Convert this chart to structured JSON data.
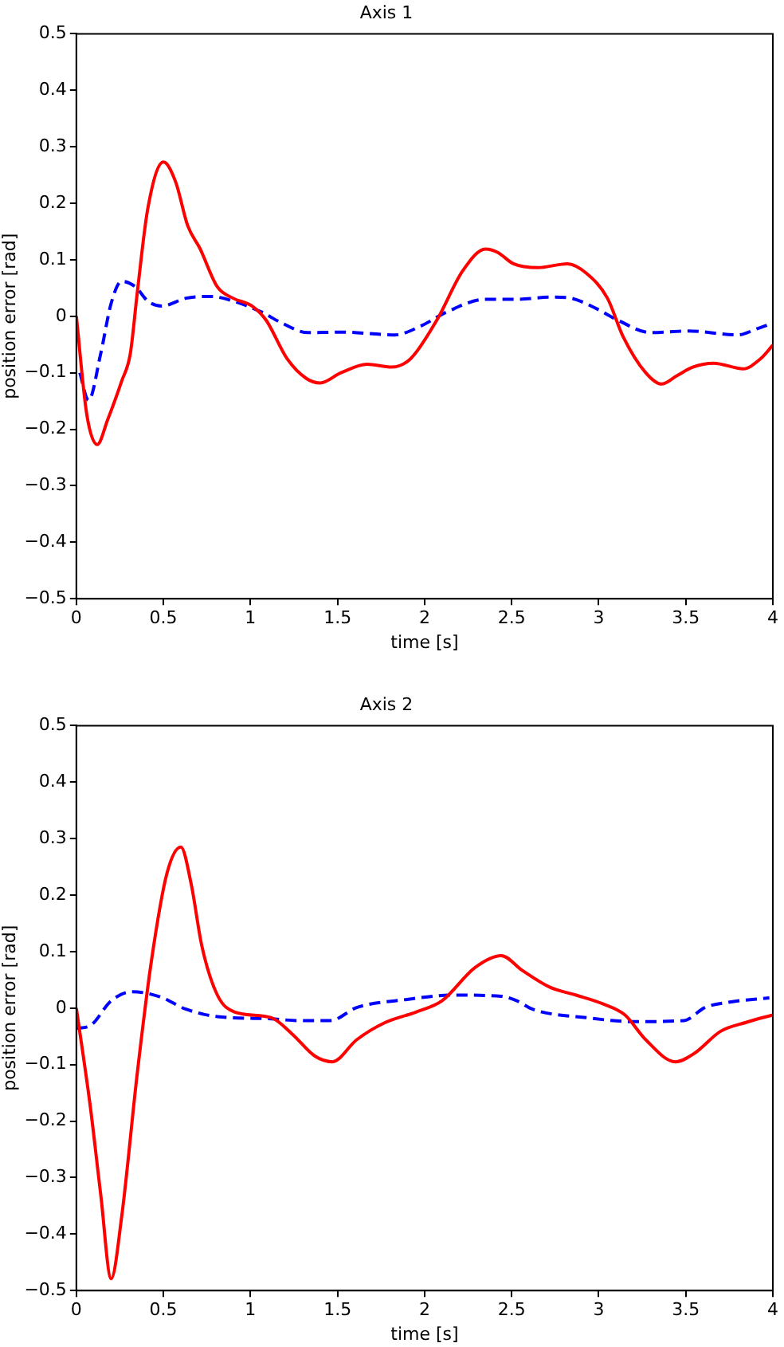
{
  "chart_data": [
    {
      "type": "line",
      "title": "Axis 1",
      "xlabel": "time [s]",
      "ylabel": "position error [rad]",
      "xlim": [
        0,
        4
      ],
      "xticks": [
        0,
        0.5,
        1,
        1.5,
        2,
        2.5,
        3,
        3.5,
        4
      ],
      "ylim": [
        -0.5,
        0.5
      ],
      "yticks": [
        {
          "value": -0.5,
          "label": "−0.5"
        },
        {
          "value": -0.4,
          "label": "−0.4"
        },
        {
          "value": -0.3,
          "label": "−0.3"
        },
        {
          "value": -0.2,
          "label": "−0.2"
        },
        {
          "value": -0.1,
          "label": "−0.1"
        },
        0,
        0.1,
        0.2,
        0.3,
        0.4,
        0.5
      ],
      "grid": false,
      "marker": "none",
      "series": [
        {
          "color": "#ff0000",
          "line_style": "solid",
          "x": [
            0,
            0.06,
            0.12,
            0.18,
            0.26,
            0.31,
            0.35,
            0.41,
            0.5,
            0.57,
            0.64,
            0.71,
            0.81,
            0.9,
            1.01,
            1.09,
            1.21,
            1.32,
            1.4,
            1.52,
            1.67,
            1.81,
            1.92,
            2.07,
            2.22,
            2.35,
            2.42,
            2.51,
            2.65,
            2.82,
            2.93,
            3.05,
            3.14,
            3.27,
            3.36,
            3.45,
            3.54,
            3.66,
            3.83,
            3.93,
            4
          ],
          "values": [
            0,
            -0.174,
            -0.227,
            -0.183,
            -0.115,
            -0.066,
            0.042,
            0.19,
            0.273,
            0.238,
            0.16,
            0.12,
            0.052,
            0.032,
            0.018,
            -0.007,
            -0.075,
            -0.11,
            -0.118,
            -0.1,
            -0.085,
            -0.09,
            -0.075,
            -0.007,
            0.081,
            0.119,
            0.113,
            0.093,
            0.086,
            0.093,
            0.076,
            0.032,
            -0.036,
            -0.1,
            -0.12,
            -0.105,
            -0.09,
            -0.083,
            -0.093,
            -0.075,
            -0.051
          ]
        },
        {
          "color": "#0000ff",
          "line_style": "dashed",
          "x": [
            0.02,
            0.07,
            0.14,
            0.2,
            0.26,
            0.34,
            0.41,
            0.49,
            0.63,
            0.77,
            0.9,
            1.06,
            1.18,
            1.33,
            1.52,
            1.83,
            1.98,
            2.13,
            2.35,
            2.53,
            2.74,
            2.84,
            2.99,
            3.11,
            3.3,
            3.51,
            3.8,
            3.91,
            4
          ],
          "values": [
            -0.1,
            -0.149,
            -0.066,
            0.023,
            0.062,
            0.052,
            0.027,
            0.018,
            0.032,
            0.035,
            0.027,
            0.008,
            -0.012,
            -0.029,
            -0.028,
            -0.033,
            -0.017,
            0.008,
            0.03,
            0.03,
            0.034,
            0.032,
            0.013,
            -0.007,
            -0.029,
            -0.026,
            -0.033,
            -0.022,
            -0.012
          ]
        }
      ]
    },
    {
      "type": "line",
      "title": "Axis 2",
      "xlabel": "time [s]",
      "ylabel": "position error [rad]",
      "xlim": [
        0,
        4
      ],
      "xticks": [
        0,
        0.5,
        1,
        1.5,
        2,
        2.5,
        3,
        3.5,
        4
      ],
      "ylim": [
        -0.5,
        0.5
      ],
      "yticks": [
        {
          "value": -0.5,
          "label": "−0.5"
        },
        {
          "value": -0.4,
          "label": "−0.4"
        },
        {
          "value": -0.3,
          "label": "−0.3"
        },
        {
          "value": -0.2,
          "label": "−0.2"
        },
        {
          "value": -0.1,
          "label": "−0.1"
        },
        0,
        0.1,
        0.2,
        0.3,
        0.4,
        0.5
      ],
      "grid": false,
      "marker": "none",
      "series": [
        {
          "color": "#ff0000",
          "line_style": "solid",
          "x": [
            0,
            0.08,
            0.14,
            0.2,
            0.26,
            0.35,
            0.43,
            0.52,
            0.6,
            0.66,
            0.72,
            0.81,
            0.91,
            1.12,
            1.24,
            1.37,
            1.47,
            1.61,
            1.77,
            1.95,
            2.1,
            2.29,
            2.44,
            2.56,
            2.72,
            2.87,
            3.02,
            3.15,
            3.27,
            3.44,
            3.55,
            3.7,
            3.85,
            4
          ],
          "values": [
            0,
            -0.174,
            -0.33,
            -0.479,
            -0.37,
            -0.115,
            0.081,
            0.238,
            0.285,
            0.219,
            0.111,
            0.023,
            -0.007,
            -0.017,
            -0.046,
            -0.085,
            -0.095,
            -0.056,
            -0.026,
            -0.007,
            0.013,
            0.072,
            0.093,
            0.067,
            0.037,
            0.023,
            0.008,
            -0.012,
            -0.056,
            -0.095,
            -0.08,
            -0.041,
            -0.025,
            -0.012
          ]
        },
        {
          "color": "#0000ff",
          "line_style": "dashed",
          "x": [
            0,
            0.08,
            0.2,
            0.32,
            0.48,
            0.63,
            0.81,
            1.12,
            1.27,
            1.46,
            1.61,
            1.89,
            2.16,
            2.44,
            2.53,
            2.62,
            2.93,
            3.21,
            3.49,
            3.61,
            3.76,
            3.98
          ],
          "values": [
            -0.036,
            -0.031,
            0.013,
            0.029,
            0.02,
            -0.002,
            -0.015,
            -0.019,
            -0.022,
            -0.022,
            0.001,
            0.015,
            0.023,
            0.021,
            0.013,
            -0.002,
            -0.017,
            -0.024,
            -0.022,
            0.001,
            0.011,
            0.018
          ]
        }
      ]
    }
  ]
}
